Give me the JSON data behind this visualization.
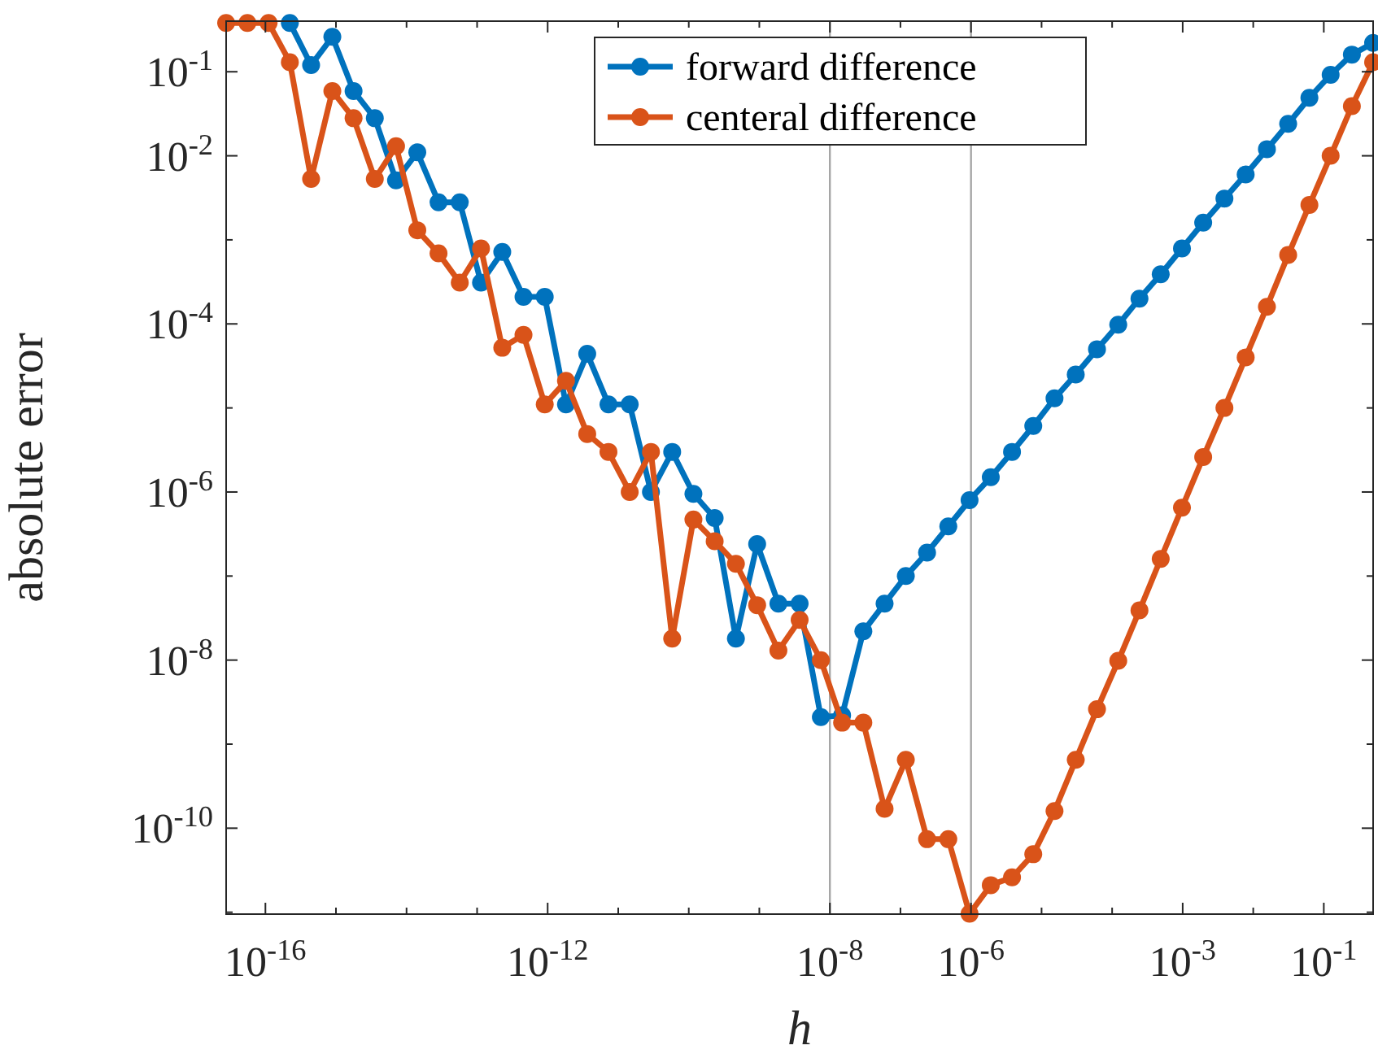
{
  "chart_data": {
    "type": "line",
    "xlabel": "h",
    "ylabel": "absolute error",
    "log": "xy",
    "legend": "top",
    "marker": "circle",
    "line_style": "solid",
    "grid": false,
    "x": [
      2.776e-17,
      5.551e-17,
      1.11e-16,
      2.22e-16,
      4.441e-16,
      8.882e-16,
      1.776e-15,
      3.553e-15,
      7.105e-15,
      1.421e-14,
      2.842e-14,
      5.684e-14,
      1.137e-13,
      2.274e-13,
      4.547e-13,
      9.095e-13,
      1.819e-12,
      3.638e-12,
      7.276e-12,
      1.455e-11,
      2.91e-11,
      5.821e-11,
      1.164e-10,
      2.328e-10,
      4.657e-10,
      9.313e-10,
      1.863e-09,
      3.725e-09,
      7.451e-09,
      1.49e-08,
      2.98e-08,
      5.96e-08,
      1.192e-07,
      2.384e-07,
      4.768e-07,
      9.537e-07,
      1.907e-06,
      3.815e-06,
      7.629e-06,
      1.526e-05,
      3.052e-05,
      6.104e-05,
      0.0001221,
      0.0002441,
      0.0004883,
      0.0009766,
      0.001953,
      0.003906,
      0.007813,
      0.01563,
      0.03125,
      0.0625,
      0.125,
      0.25,
      0.5
    ],
    "series": [
      {
        "name": "forward difference",
        "color": "#0072bd",
        "values": [
          null,
          null,
          null,
          0.38,
          0.12,
          0.26,
          0.059,
          0.028,
          0.0051,
          0.011,
          0.0028,
          0.0028,
          0.00031,
          0.00072,
          0.00021,
          0.00021,
          1.1e-05,
          4.4e-05,
          1.1e-05,
          1.1e-05,
          1e-06,
          3e-06,
          9.5e-07,
          4.9e-07,
          1.8e-08,
          2.4e-07,
          4.7e-08,
          4.7e-08,
          2.1e-09,
          2.2e-09,
          2.2e-08,
          4.7e-08,
          1e-07,
          1.9e-07,
          3.9e-07,
          8e-07,
          1.5e-06,
          3e-06,
          6.1e-06,
          1.3e-05,
          2.5e-05,
          5e-05,
          9.8e-05,
          0.0002,
          0.00039,
          0.00079,
          0.0016,
          0.0031,
          0.006,
          0.012,
          0.024,
          0.049,
          0.092,
          0.16,
          0.22
        ]
      },
      {
        "name": "centeral difference",
        "color": "#d95319",
        "values": [
          0.38,
          0.38,
          0.38,
          0.13,
          0.0053,
          0.059,
          0.028,
          0.0053,
          0.013,
          0.0013,
          0.00069,
          0.00031,
          0.00079,
          5.2e-05,
          7.4e-05,
          1.1e-05,
          2.1e-05,
          4.9e-06,
          3e-06,
          1e-06,
          3e-06,
          1.8e-08,
          4.7e-07,
          2.6e-07,
          1.4e-07,
          4.5e-08,
          1.3e-08,
          3e-08,
          1e-08,
          1.8e-09,
          1.8e-09,
          1.7e-10,
          6.5e-10,
          7.4e-11,
          7.4e-11,
          9.6e-12,
          2.1e-11,
          2.6e-11,
          4.9e-11,
          1.6e-10,
          6.5e-10,
          2.6e-09,
          9.8e-09,
          3.9e-08,
          1.6e-07,
          6.5e-07,
          2.6e-06,
          1e-05,
          4e-05,
          0.00016,
          0.00066,
          0.0026,
          0.01,
          0.039,
          0.13
        ]
      }
    ],
    "xlim": [
      2.776e-17,
      0.5
    ],
    "ylim": [
      9.5e-12,
      0.4
    ],
    "xticks": [
      {
        "value": 1e-16,
        "label": "10$^{-16}$"
      },
      {
        "value": 1e-15,
        "label": null
      },
      {
        "value": 1e-14,
        "label": null
      },
      {
        "value": 1e-13,
        "label": null
      },
      {
        "value": 1e-12,
        "label": "10$^{-12}$"
      },
      {
        "value": 1e-11,
        "label": null
      },
      {
        "value": 1e-10,
        "label": null
      },
      {
        "value": 1e-09,
        "label": null
      },
      {
        "value": 1e-08,
        "label": "10$^{-8}$"
      },
      {
        "value": 1e-07,
        "label": null
      },
      {
        "value": 1e-06,
        "label": "10$^{-6}$"
      },
      {
        "value": 1e-05,
        "label": null
      },
      {
        "value": 0.0001,
        "label": null
      },
      {
        "value": 0.001,
        "label": "10$^{-3}$"
      },
      {
        "value": 0.01,
        "label": null
      },
      {
        "value": 0.1,
        "label": "10$^{-1}$"
      }
    ],
    "yticks": [
      {
        "value": 1e-11,
        "label": null
      },
      {
        "value": 1e-10,
        "label": "10$^{-10}$"
      },
      {
        "value": 1e-09,
        "label": null
      },
      {
        "value": 1e-08,
        "label": "10$^{-8}$"
      },
      {
        "value": 1e-07,
        "label": null
      },
      {
        "value": 1e-06,
        "label": "10$^{-6}$"
      },
      {
        "value": 1e-05,
        "label": null
      },
      {
        "value": 0.0001,
        "label": "10$^{-4}$"
      },
      {
        "value": 0.001,
        "label": null
      },
      {
        "value": 0.01,
        "label": "10$^{-2}$"
      },
      {
        "value": 0.1,
        "label": "10$^{-1}$"
      }
    ],
    "ref_lines": [
      {
        "axis": "x",
        "value": 1e-08,
        "color": "#a6a6a6"
      },
      {
        "axis": "x",
        "value": 1e-06,
        "color": "#a6a6a6"
      }
    ]
  }
}
